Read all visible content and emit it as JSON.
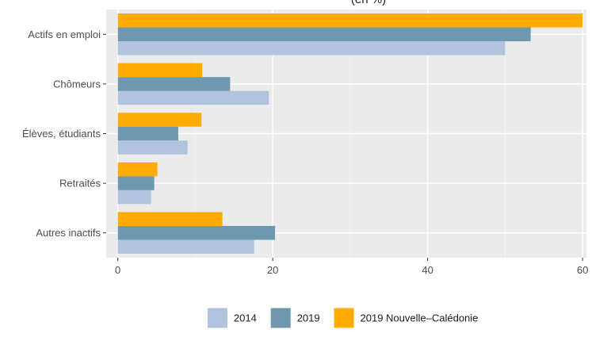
{
  "chart_data": {
    "type": "bar",
    "orientation": "horizontal",
    "title": "(en %)",
    "xlabel": "",
    "ylabel": "",
    "categories": [
      "Actifs en emploi",
      "Chômeurs",
      "Élèves, étudiants",
      "Retraités",
      "Autres inactifs"
    ],
    "series": [
      {
        "name": "2014",
        "color": "#b0c4de",
        "values": [
          50.0,
          19.5,
          9.0,
          4.3,
          17.6
        ]
      },
      {
        "name": "2019",
        "color": "#6e98b0",
        "values": [
          53.3,
          14.5,
          7.8,
          4.7,
          20.3
        ]
      },
      {
        "name": "2019 Nouvelle–Calédonie",
        "color": "#ffab00",
        "values": [
          60.0,
          10.9,
          10.8,
          5.1,
          13.5
        ]
      }
    ],
    "xlim": [
      -1.5,
      60.5
    ],
    "xticks": [
      "0",
      "20",
      "40",
      "60"
    ],
    "grid": true,
    "legend_position": "bottom"
  }
}
